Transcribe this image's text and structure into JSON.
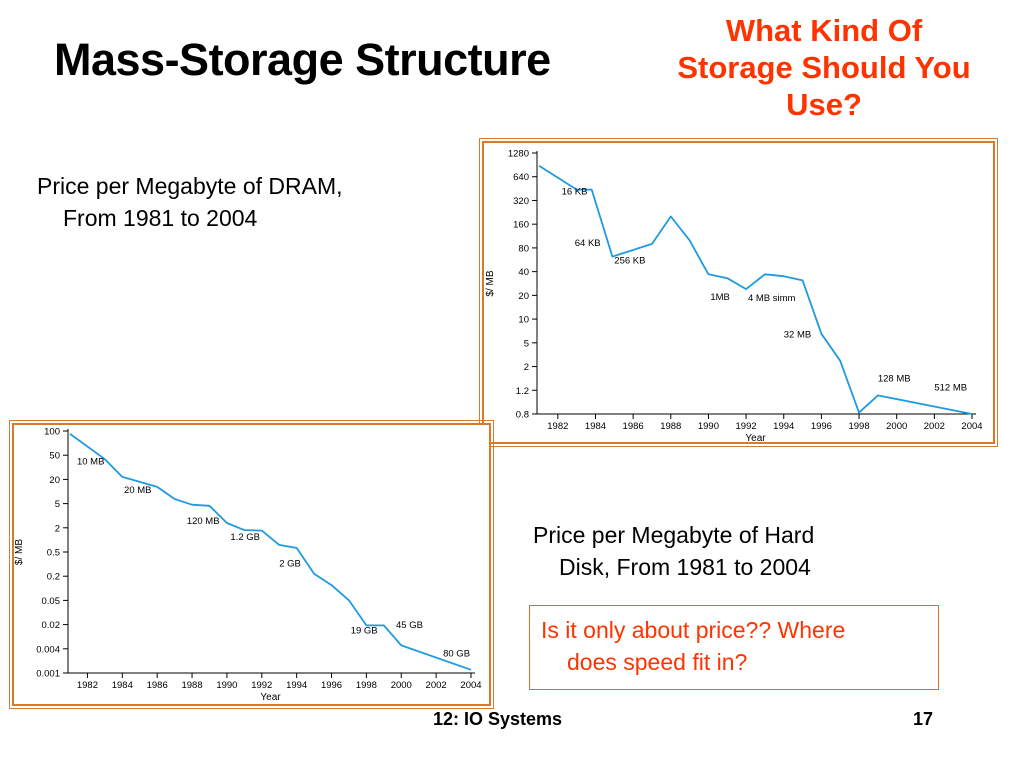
{
  "slide": {
    "title": "Mass-Storage Structure",
    "question": "What Kind Of Storage Should You Use?",
    "dram_caption": [
      "Price per Megabyte of DRAM,",
      "From 1981 to 2004"
    ],
    "disk_caption": [
      "Price per Megabyte of Hard",
      "Disk, From 1981 to 2004"
    ],
    "speed_note": [
      "Is it only about price??  Where",
      "does speed fit in?"
    ],
    "footer_left": "12: IO Systems",
    "footer_right": "17"
  },
  "colors": {
    "title": "#000000",
    "accent": "#ff3300",
    "frame": "#d77a2b",
    "line": "#1e9be0"
  },
  "chart_data": [
    {
      "type": "line",
      "id": "dram",
      "xlabel": "Year",
      "ylabel": "$/ MB",
      "scale_y": "log",
      "xlim": [
        1981,
        2004
      ],
      "ylim": [
        0.8,
        1280
      ],
      "x_ticks": [
        1982,
        1984,
        1986,
        1988,
        1990,
        1992,
        1994,
        1996,
        1998,
        2000,
        2002,
        2004
      ],
      "y_ticks": [
        0.8,
        1.2,
        2,
        5,
        10,
        20,
        40,
        80,
        160,
        320,
        640,
        1280
      ],
      "y_tick_labels": [
        "0.8",
        "1.2",
        "2",
        "5",
        "10",
        "20",
        "40",
        "80",
        "160",
        "320",
        "640",
        "1280"
      ],
      "series": [
        {
          "points": [
            [
              1981,
              880
            ],
            [
              1983,
              440
            ],
            [
              1983.8,
              440
            ],
            [
              1984.9,
              62
            ],
            [
              1987,
              90
            ],
            [
              1988,
              200
            ],
            [
              1989,
              100
            ],
            [
              1990,
              37
            ],
            [
              1991,
              33
            ],
            [
              1992,
              24
            ],
            [
              1993,
              37
            ],
            [
              1994,
              35
            ],
            [
              1995,
              31
            ],
            [
              1996,
              6.5
            ],
            [
              1997,
              2.5
            ],
            [
              1998,
              0.82
            ],
            [
              1999,
              1.1
            ],
            [
              2004,
              0.8
            ]
          ]
        }
      ],
      "annotations": [
        {
          "text": "16 KB",
          "x": 1982.2,
          "y": 380
        },
        {
          "text": "64 KB",
          "x": 1982.9,
          "y": 85
        },
        {
          "text": "256 KB",
          "x": 1985.0,
          "y": 51
        },
        {
          "text": "1MB",
          "x": 1990.1,
          "y": 17.5
        },
        {
          "text": "4 MB simm",
          "x": 1992.1,
          "y": 17.0
        },
        {
          "text": "32 MB",
          "x": 1994.0,
          "y": 5.8
        },
        {
          "text": "128 MB",
          "x": 1999.0,
          "y": 1.45
        },
        {
          "text": "512 MB",
          "x": 2002.0,
          "y": 1.2
        }
      ]
    },
    {
      "type": "line",
      "id": "disk",
      "xlabel": "Year",
      "ylabel": "$/ MB",
      "scale_y": "log",
      "xlim": [
        1981,
        2004
      ],
      "y_ticks": [
        0.001,
        0.004,
        0.02,
        0.05,
        0.2,
        0.5,
        2,
        5,
        20,
        50,
        100
      ],
      "y_tick_labels": [
        "0.001",
        "0.004",
        "0.02",
        "0.05",
        "0.2",
        "0.5",
        "2",
        "5",
        "20",
        "50",
        "100"
      ],
      "x_ticks": [
        1982,
        1984,
        1986,
        1988,
        1990,
        1992,
        1994,
        1996,
        1998,
        2000,
        2002,
        2004
      ],
      "series": [
        {
          "points": [
            [
              1981,
              92
            ],
            [
              1983,
              43
            ],
            [
              1984,
              22
            ],
            [
              1986,
              13
            ],
            [
              1987,
              6.5
            ],
            [
              1988,
              4.8
            ],
            [
              1989,
              4.6
            ],
            [
              1990,
              2.4
            ],
            [
              1991,
              1.75
            ],
            [
              1992,
              1.7
            ],
            [
              1993,
              0.75
            ],
            [
              1994,
              0.63
            ],
            [
              1995,
              0.22
            ],
            [
              1996,
              0.12
            ],
            [
              1997,
              0.05
            ],
            [
              1998,
              0.019
            ],
            [
              1999,
              0.019
            ],
            [
              2000,
              0.005
            ],
            [
              2004,
              0.0012
            ]
          ]
        }
      ],
      "annotations": [
        {
          "text": "10 MB",
          "x": 1981.4,
          "y": 35
        },
        {
          "text": "20 MB",
          "x": 1984.1,
          "y": 9.2
        },
        {
          "text": "120 MB",
          "x": 1987.7,
          "y": 2.3
        },
        {
          "text": "1.2 GB",
          "x": 1990.2,
          "y": 1.0
        },
        {
          "text": "2 GB",
          "x": 1993.0,
          "y": 0.29
        },
        {
          "text": "19 GB",
          "x": 1997.1,
          "y": 0.011
        },
        {
          "text": "45 GB",
          "x": 1999.7,
          "y": 0.016
        },
        {
          "text": "80 GB",
          "x": 2002.4,
          "y": 0.0026
        }
      ]
    }
  ]
}
